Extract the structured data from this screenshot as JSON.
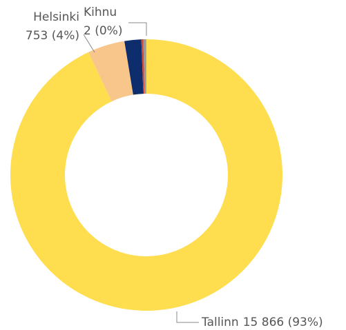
{
  "chart_data": {
    "type": "donut",
    "categories": [
      "Tallinn",
      "Helsinki",
      null,
      null,
      null,
      "Kihnu"
    ],
    "values": [
      15866,
      753,
      340,
      40,
      60,
      2
    ],
    "value_labels": [
      "15 866 (93%)",
      "753 (4%)",
      null,
      null,
      null,
      "2 (0%)"
    ],
    "colors": [
      "#fedd4f",
      "#f8c58a",
      "#0d2d6c",
      "#d9452b",
      "#9a9a9a",
      "#c8c8c8"
    ]
  }
}
